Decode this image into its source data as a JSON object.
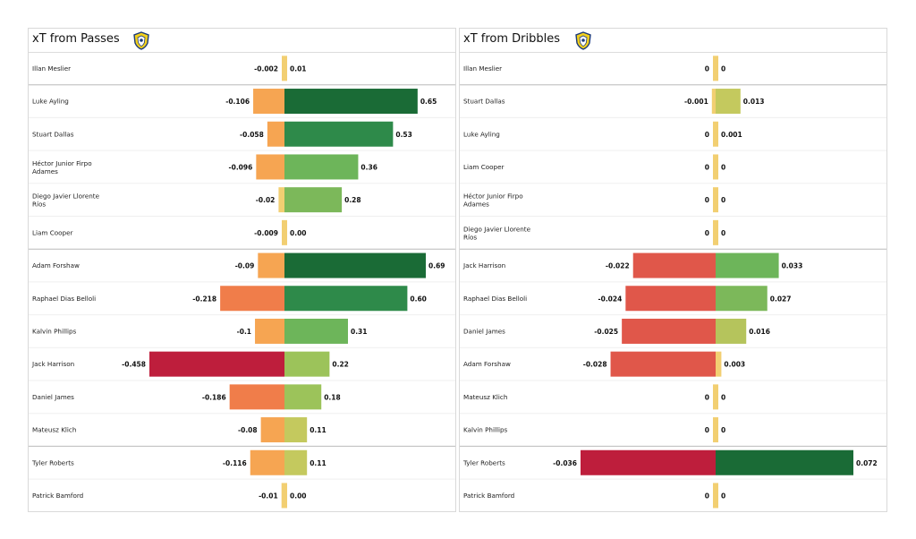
{
  "charts": [
    {
      "id": "passes",
      "title": "xT from Passes",
      "badge_icon": "leeds-united-crest-icon",
      "chart_data": {
        "type": "bar",
        "orientation": "horizontal-diverging",
        "title": "xT from Passes",
        "groups": [
          [
            "Illan Meslier"
          ],
          [
            "Luke Ayling",
            "Stuart Dallas",
            "Héctor Junior Firpo Adames",
            "Diego Javier Llorente Ríos",
            "Liam Cooper"
          ],
          [
            "Adam Forshaw",
            "Raphael Dias Belloli",
            "Kalvin Phillips",
            "Jack Harrison",
            "Daniel James",
            "Mateusz Klich"
          ],
          [
            "Tyler Roberts",
            "Patrick Bamford"
          ]
        ],
        "categories": [
          "Illan Meslier",
          "Luke Ayling",
          "Stuart Dallas",
          "Héctor Junior Firpo Adames",
          "Diego Javier Llorente Ríos",
          "Liam Cooper",
          "Adam Forshaw",
          "Raphael Dias Belloli",
          "Kalvin Phillips",
          "Jack Harrison",
          "Daniel James",
          "Mateusz Klich",
          "Tyler Roberts",
          "Patrick Bamford"
        ],
        "series": [
          {
            "values": [
              -0.002,
              -0.106,
              -0.058,
              -0.096,
              -0.02,
              -0.009,
              -0.09,
              -0.218,
              -0.1,
              -0.458,
              -0.186,
              -0.08,
              -0.116,
              -0.01
            ]
          },
          {
            "values": [
              0.01,
              0.65,
              0.53,
              0.36,
              0.28,
              0.0,
              0.69,
              0.6,
              0.31,
              0.22,
              0.18,
              0.11,
              0.11,
              0.0
            ]
          }
        ],
        "labels": {
          "negative": [
            "-0.002",
            "-0.106",
            "-0.058",
            "-0.096",
            "-0.02",
            "-0.009",
            "-0.09",
            "-0.218",
            "-0.1",
            "-0.458",
            "-0.186",
            "-0.08",
            "-0.116",
            "-0.01"
          ],
          "positive": [
            "0.01",
            "0.65",
            "0.53",
            "0.36",
            "0.28",
            "0.00",
            "0.69",
            "0.60",
            "0.31",
            "0.22",
            "0.18",
            "0.11",
            "0.11",
            "0.00"
          ]
        },
        "neg_max": 0.458,
        "pos_max": 0.69,
        "neg_colors": [
          "#f2cf72",
          "#f6a552",
          "#f6a552",
          "#f6a552",
          "#f2cf72",
          "#f2cf72",
          "#f6a552",
          "#f07d4a",
          "#f6a552",
          "#be1e3c",
          "#f07d4a",
          "#f6a552",
          "#f6a552",
          "#f2cf72"
        ],
        "pos_colors": [
          "#f2cf72",
          "#1a6b36",
          "#2e8a4a",
          "#6db55a",
          "#7cb85a",
          "#f2cf72",
          "#1a6b36",
          "#2e8a4a",
          "#6db55a",
          "#9cc35a",
          "#9cc35a",
          "#c4c95e",
          "#c4c95e",
          "#f2cf72"
        ]
      }
    },
    {
      "id": "dribbles",
      "title": "xT from Dribbles",
      "badge_icon": "leeds-united-crest-icon",
      "chart_data": {
        "type": "bar",
        "orientation": "horizontal-diverging",
        "title": "xT from Dribbles",
        "groups": [
          [
            "Illan Meslier"
          ],
          [
            "Stuart Dallas",
            "Luke Ayling",
            "Liam Cooper",
            "Héctor Junior Firpo Adames",
            "Diego Javier Llorente Ríos"
          ],
          [
            "Jack Harrison",
            "Raphael Dias Belloli",
            "Daniel James",
            "Adam Forshaw",
            "Mateusz Klich",
            "Kalvin Phillips"
          ],
          [
            "Tyler Roberts",
            "Patrick Bamford"
          ]
        ],
        "categories": [
          "Illan Meslier",
          "Stuart Dallas",
          "Luke Ayling",
          "Liam Cooper",
          "Héctor Junior Firpo Adames",
          "Diego Javier Llorente Ríos",
          "Jack Harrison",
          "Raphael Dias Belloli",
          "Daniel James",
          "Adam Forshaw",
          "Mateusz Klich",
          "Kalvin Phillips",
          "Tyler Roberts",
          "Patrick Bamford"
        ],
        "series": [
          {
            "values": [
              0,
              -0.001,
              0,
              0,
              0,
              0,
              -0.022,
              -0.024,
              -0.025,
              -0.028,
              0,
              0,
              -0.036,
              0
            ]
          },
          {
            "values": [
              0,
              0.013,
              0.001,
              0,
              0,
              0,
              0.033,
              0.027,
              0.016,
              0.003,
              0,
              0,
              0.072,
              0
            ]
          }
        ],
        "labels": {
          "negative": [
            "0",
            "-0.001",
            "0",
            "0",
            "0",
            "0",
            "-0.022",
            "-0.024",
            "-0.025",
            "-0.028",
            "0",
            "0",
            "-0.036",
            "0"
          ],
          "positive": [
            "0",
            "0.013",
            "0.001",
            "0",
            "0",
            "0",
            "0.033",
            "0.027",
            "0.016",
            "0.003",
            "0",
            "0",
            "0.072",
            "0"
          ]
        },
        "neg_max": 0.036,
        "pos_max": 0.072,
        "neg_colors": [
          "#f2cf72",
          "#f2cf72",
          "#f2cf72",
          "#f2cf72",
          "#f2cf72",
          "#f2cf72",
          "#e0574a",
          "#e0574a",
          "#e0574a",
          "#e0574a",
          "#f2cf72",
          "#f2cf72",
          "#be1e3c",
          "#f2cf72"
        ],
        "pos_colors": [
          "#f2cf72",
          "#c4c95e",
          "#f2cf72",
          "#f2cf72",
          "#f2cf72",
          "#f2cf72",
          "#6db55a",
          "#7cb85a",
          "#b5c45c",
          "#f2cf72",
          "#f2cf72",
          "#f2cf72",
          "#1a6b36",
          "#f2cf72"
        ]
      }
    }
  ]
}
